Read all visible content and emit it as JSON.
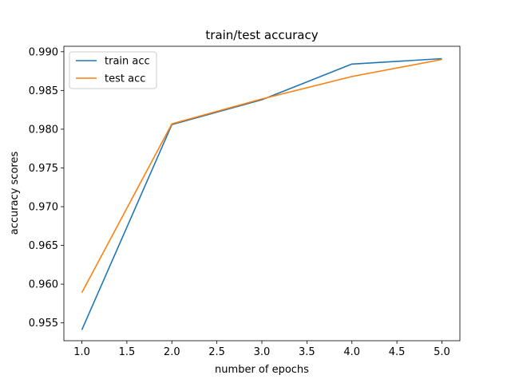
{
  "chart_data": {
    "type": "line",
    "title": "train/test accuracy",
    "xlabel": "number of epochs",
    "ylabel": "accuracy scores",
    "xlim": [
      0.8,
      5.2
    ],
    "ylim": [
      0.9527,
      0.9907
    ],
    "xticks": [
      "1.0",
      "1.5",
      "2.0",
      "2.5",
      "3.0",
      "3.5",
      "4.0",
      "4.5",
      "5.0"
    ],
    "yticks": [
      "0.955",
      "0.960",
      "0.965",
      "0.970",
      "0.975",
      "0.980",
      "0.985",
      "0.990"
    ],
    "x": [
      1.0,
      2.0,
      3.0,
      4.0,
      5.0
    ],
    "series": [
      {
        "name": "train acc",
        "color": "#1f77b4",
        "values": [
          0.9541,
          0.9806,
          0.9838,
          0.9884,
          0.9891
        ]
      },
      {
        "name": "test acc",
        "color": "#ff7f0e",
        "values": [
          0.9589,
          0.9807,
          0.9839,
          0.9868,
          0.989
        ]
      }
    ],
    "grid": false,
    "legend_position": "top-left"
  }
}
